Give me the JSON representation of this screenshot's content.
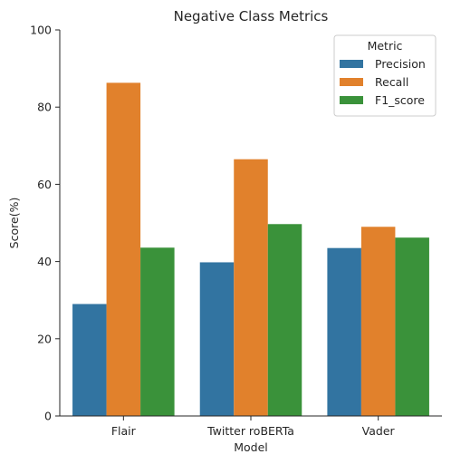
{
  "chart_data": {
    "type": "bar",
    "title": "Negative Class Metrics",
    "xlabel": "Model",
    "ylabel": "Score(%)",
    "ylim": [
      0,
      100
    ],
    "yticks": [
      0,
      20,
      40,
      60,
      80,
      100
    ],
    "categories": [
      "Flair",
      "Twitter roBERTa",
      "Vader"
    ],
    "series": [
      {
        "name": "Precision",
        "values": [
          29.0,
          39.8,
          43.5
        ],
        "color": "#3274a1"
      },
      {
        "name": "Recall",
        "values": [
          86.3,
          66.5,
          49.0
        ],
        "color": "#e1812c"
      },
      {
        "name": "F1_score",
        "values": [
          43.6,
          49.7,
          46.2
        ],
        "color": "#3a923a"
      }
    ],
    "legend": {
      "title": "Metric",
      "placement": "top-right"
    },
    "grid": false
  }
}
